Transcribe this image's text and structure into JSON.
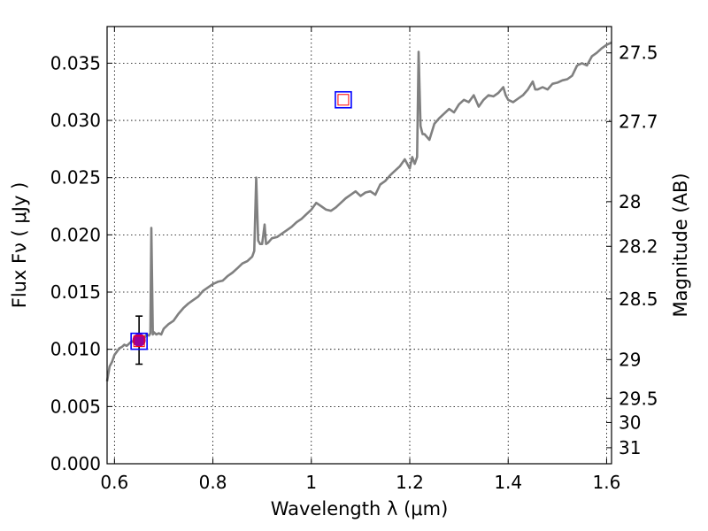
{
  "chart_data": {
    "type": "line",
    "xlabel": "Wavelength  λ (μm)",
    "ylabel": "Flux  Fν  ( μJy )",
    "y2label": "Magnitude (AB)",
    "xlim": [
      0.585,
      1.61
    ],
    "ylim": [
      0.0,
      0.0382
    ],
    "x_ticks": [
      {
        "value": 0.6,
        "label": "0.6"
      },
      {
        "value": 0.8,
        "label": "0.8"
      },
      {
        "value": 1.0,
        "label": "1"
      },
      {
        "value": 1.2,
        "label": "1.2"
      },
      {
        "value": 1.4,
        "label": "1.4"
      },
      {
        "value": 1.6,
        "label": "1.6"
      }
    ],
    "y_ticks": [
      {
        "value": 0.0,
        "label": "0.000"
      },
      {
        "value": 0.005,
        "label": "0.005"
      },
      {
        "value": 0.01,
        "label": "0.010"
      },
      {
        "value": 0.015,
        "label": "0.015"
      },
      {
        "value": 0.02,
        "label": "0.020"
      },
      {
        "value": 0.025,
        "label": "0.025"
      },
      {
        "value": 0.03,
        "label": "0.030"
      },
      {
        "value": 0.035,
        "label": "0.035"
      }
    ],
    "y2_ticks": [
      {
        "flux": 0.0359,
        "label": "27.5"
      },
      {
        "flux": 0.0299,
        "label": "27.7"
      },
      {
        "flux": 0.0229,
        "label": "28"
      },
      {
        "flux": 0.019,
        "label": "28.2"
      },
      {
        "flux": 0.0144,
        "label": "28.5"
      },
      {
        "flux": 0.0091,
        "label": "29"
      },
      {
        "flux": 0.0057,
        "label": "29.5"
      },
      {
        "flux": 0.0036,
        "label": "30"
      },
      {
        "flux": 0.0014,
        "label": "31"
      }
    ],
    "grid": true,
    "colors": {
      "spectrum": "#808080",
      "observed_marker": "#9b009b",
      "box_outer": "#0000ff",
      "box_inner": "#ff0000",
      "errorbar": "#000000"
    },
    "series": [
      {
        "style": "line",
        "x": [
          0.585,
          0.59,
          0.595,
          0.6,
          0.605,
          0.61,
          0.615,
          0.62,
          0.625,
          0.63,
          0.635,
          0.64,
          0.645,
          0.65,
          0.655,
          0.66,
          0.665,
          0.67,
          0.673,
          0.675,
          0.678,
          0.68,
          0.685,
          0.69,
          0.695,
          0.7,
          0.71,
          0.72,
          0.73,
          0.74,
          0.75,
          0.76,
          0.77,
          0.78,
          0.79,
          0.8,
          0.81,
          0.82,
          0.83,
          0.84,
          0.85,
          0.86,
          0.87,
          0.88,
          0.884,
          0.888,
          0.892,
          0.896,
          0.9,
          0.905,
          0.908,
          0.912,
          0.92,
          0.93,
          0.94,
          0.95,
          0.96,
          0.97,
          0.98,
          0.99,
          1.0,
          1.01,
          1.02,
          1.03,
          1.04,
          1.05,
          1.06,
          1.07,
          1.08,
          1.09,
          1.1,
          1.11,
          1.12,
          1.13,
          1.14,
          1.15,
          1.16,
          1.17,
          1.18,
          1.19,
          1.2,
          1.205,
          1.21,
          1.215,
          1.218,
          1.222,
          1.226,
          1.23,
          1.24,
          1.25,
          1.26,
          1.27,
          1.28,
          1.29,
          1.3,
          1.31,
          1.32,
          1.33,
          1.34,
          1.35,
          1.36,
          1.37,
          1.38,
          1.39,
          1.395,
          1.4,
          1.41,
          1.42,
          1.43,
          1.44,
          1.45,
          1.455,
          1.46,
          1.47,
          1.48,
          1.49,
          1.5,
          1.51,
          1.52,
          1.53,
          1.54,
          1.55,
          1.56,
          1.57,
          1.58,
          1.59,
          1.6,
          1.61
        ],
        "y": [
          0.0072,
          0.0085,
          0.0089,
          0.0095,
          0.0098,
          0.0101,
          0.0102,
          0.0104,
          0.0103,
          0.0105,
          0.0107,
          0.0106,
          0.0108,
          0.011,
          0.0111,
          0.0109,
          0.0113,
          0.0112,
          0.0114,
          0.0206,
          0.0113,
          0.0115,
          0.0113,
          0.0114,
          0.0113,
          0.0118,
          0.0122,
          0.0125,
          0.0131,
          0.0136,
          0.014,
          0.0143,
          0.0146,
          0.0151,
          0.0154,
          0.0157,
          0.0159,
          0.016,
          0.0164,
          0.0167,
          0.0171,
          0.0175,
          0.0177,
          0.0181,
          0.0186,
          0.025,
          0.0195,
          0.0192,
          0.0192,
          0.0209,
          0.0192,
          0.0193,
          0.0197,
          0.0198,
          0.0201,
          0.0204,
          0.0207,
          0.0211,
          0.0214,
          0.0218,
          0.0222,
          0.0228,
          0.0225,
          0.0222,
          0.0221,
          0.0224,
          0.0228,
          0.0232,
          0.0235,
          0.0238,
          0.0234,
          0.0237,
          0.0238,
          0.0235,
          0.0244,
          0.0247,
          0.0252,
          0.0256,
          0.026,
          0.0266,
          0.0258,
          0.0268,
          0.0262,
          0.0268,
          0.036,
          0.0295,
          0.0288,
          0.0288,
          0.0283,
          0.0297,
          0.0302,
          0.0306,
          0.031,
          0.0307,
          0.0314,
          0.0318,
          0.0316,
          0.0322,
          0.0312,
          0.0318,
          0.0322,
          0.0321,
          0.0324,
          0.0329,
          0.0322,
          0.0318,
          0.0316,
          0.0319,
          0.0322,
          0.0327,
          0.0334,
          0.0327,
          0.0327,
          0.0329,
          0.0327,
          0.0332,
          0.0333,
          0.0335,
          0.0336,
          0.0339,
          0.0348,
          0.035,
          0.0348,
          0.0356,
          0.0359,
          0.0363,
          0.0366,
          0.0368
        ]
      },
      {
        "style": "errorbar",
        "x": [
          0.65
        ],
        "y": [
          0.0108
        ],
        "yerr_low": [
          0.0021
        ],
        "yerr_high": [
          0.0021
        ]
      },
      {
        "style": "marker",
        "marker": "square",
        "x": [
          0.65,
          1.065
        ],
        "y": [
          0.0107,
          0.0318
        ]
      }
    ]
  }
}
